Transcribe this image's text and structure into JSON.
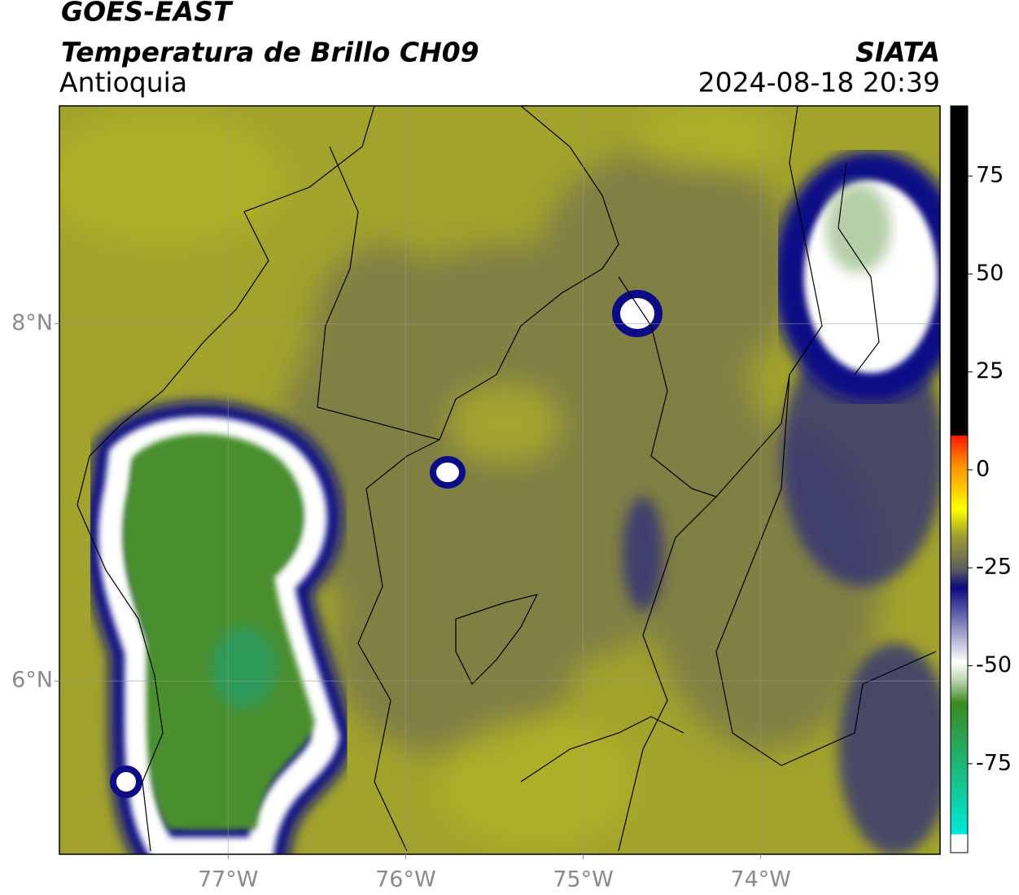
{
  "header": {
    "title": "GOES-EAST",
    "subtitle": "Temperatura de Brillo CH09",
    "region": "Antioquia",
    "source": "SIATA",
    "timestamp": "2024-08-18 20:39"
  },
  "map": {
    "xlim": [
      -77.95,
      -72.99
    ],
    "ylim": [
      5.03,
      9.22
    ],
    "xticks": [
      {
        "value": -77,
        "label": "77°W"
      },
      {
        "value": -76,
        "label": "76°W"
      },
      {
        "value": -75,
        "label": "75°W"
      },
      {
        "value": -74,
        "label": "74°W"
      }
    ],
    "yticks": [
      {
        "value": 8,
        "label": "8°N"
      },
      {
        "value": 6,
        "label": "6°N"
      }
    ]
  },
  "colorbar": {
    "lim": [
      -97.7,
      92.9
    ],
    "ticks": [
      75,
      50,
      25,
      0,
      -25,
      -50,
      -75
    ]
  }
}
